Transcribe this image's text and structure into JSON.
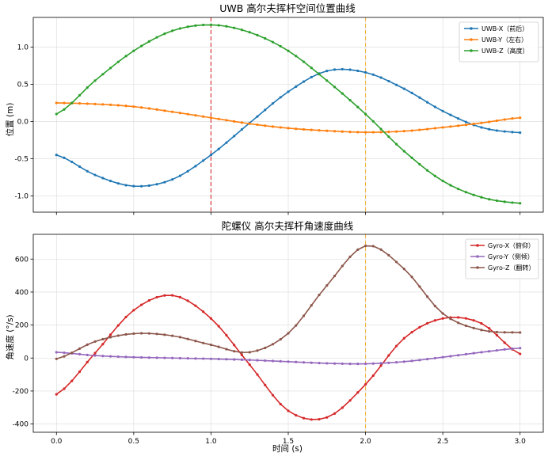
{
  "chart_data": [
    {
      "type": "line",
      "title": "UWB 高尔夫挥杆空间位置曲线",
      "xlabel": "",
      "ylabel": "位置 (m)",
      "xlim": [
        -0.15,
        3.15
      ],
      "ylim": [
        -1.22,
        1.4
      ],
      "xticks": [
        "0.0",
        "0.5",
        "1.0",
        "1.5",
        "2.0",
        "2.5",
        "3.0"
      ],
      "yticks": [
        "-1.0",
        "-0.5",
        "0.0",
        "0.5",
        "1.0"
      ],
      "ytick_values": [
        -1.0,
        -0.5,
        0.0,
        0.5,
        1.0
      ],
      "grid": true,
      "legend_position": "top-right",
      "vlines": [
        {
          "x": 1.0,
          "color": "#d62728"
        },
        {
          "x": 2.0,
          "color": "#f0b43c"
        }
      ],
      "series": [
        {
          "name": "UWB-X（前后）",
          "color": "#1f77b4",
          "x": [
            0.0,
            0.25,
            0.5,
            0.75,
            1.0,
            1.25,
            1.5,
            1.75,
            2.0,
            2.25,
            2.5,
            2.75,
            3.0
          ],
          "values": [
            -0.45,
            -0.72,
            -0.87,
            -0.78,
            -0.45,
            -0.02,
            0.4,
            0.68,
            0.66,
            0.44,
            0.14,
            -0.08,
            -0.15
          ]
        },
        {
          "name": "UWB-Y（左右）",
          "color": "#ff7f0e",
          "x": [
            0.0,
            0.25,
            0.5,
            0.75,
            1.0,
            1.25,
            1.5,
            1.75,
            2.0,
            2.25,
            2.5,
            2.75,
            3.0
          ],
          "values": [
            0.25,
            0.235,
            0.2,
            0.13,
            0.05,
            -0.03,
            -0.09,
            -0.125,
            -0.145,
            -0.13,
            -0.08,
            -0.02,
            0.05
          ]
        },
        {
          "name": "UWB-Z（高度）",
          "color": "#2ca02c",
          "x": [
            0.0,
            0.25,
            0.5,
            0.75,
            1.0,
            1.25,
            1.5,
            1.75,
            2.0,
            2.25,
            2.5,
            2.75,
            3.0
          ],
          "values": [
            0.1,
            0.55,
            0.95,
            1.22,
            1.3,
            1.2,
            0.95,
            0.55,
            0.1,
            -0.4,
            -0.8,
            -1.02,
            -1.1
          ]
        }
      ]
    },
    {
      "type": "line",
      "title": "陀螺仪 高尔夫挥杆角速度曲线",
      "xlabel": "时间 (s)",
      "ylabel": "角速度 (°/s)",
      "xlim": [
        -0.15,
        3.15
      ],
      "ylim": [
        -450,
        750
      ],
      "xticks": [
        "0.0",
        "0.5",
        "1.0",
        "1.5",
        "2.0",
        "2.5",
        "3.0"
      ],
      "yticks": [
        "-400",
        "-200",
        "0",
        "200",
        "400",
        "600"
      ],
      "ytick_values": [
        -400,
        -200,
        0,
        200,
        400,
        600
      ],
      "grid": true,
      "legend_position": "top-right",
      "vlines": [
        {
          "x": 2.0,
          "color": "#f0b43c"
        }
      ],
      "series": [
        {
          "name": "Gyro-X（俯仰）",
          "color": "#d62728",
          "x": [
            0.0,
            0.25,
            0.5,
            0.75,
            1.0,
            1.25,
            1.5,
            1.75,
            2.0,
            2.25,
            2.5,
            2.75,
            3.0
          ],
          "values": [
            -220,
            30,
            290,
            380,
            240,
            -40,
            -320,
            -360,
            -160,
            120,
            240,
            210,
            25
          ]
        },
        {
          "name": "Gyro-Y（侧倾）",
          "color": "#9467bd",
          "x": [
            0.0,
            0.25,
            0.5,
            0.75,
            1.0,
            1.25,
            1.5,
            1.75,
            2.0,
            2.25,
            2.5,
            2.75,
            3.0
          ],
          "values": [
            35,
            15,
            5,
            0,
            -5,
            -12,
            -22,
            -32,
            -35,
            -22,
            5,
            35,
            60
          ]
        },
        {
          "name": "Gyro-Z（翻转）",
          "color": "#8c564b",
          "x": [
            0.0,
            0.25,
            0.5,
            0.75,
            1.0,
            1.25,
            1.5,
            1.75,
            2.0,
            2.25,
            2.5,
            2.75,
            3.0
          ],
          "values": [
            -5,
            100,
            148,
            135,
            80,
            35,
            150,
            440,
            680,
            540,
            270,
            170,
            155
          ]
        }
      ]
    }
  ]
}
